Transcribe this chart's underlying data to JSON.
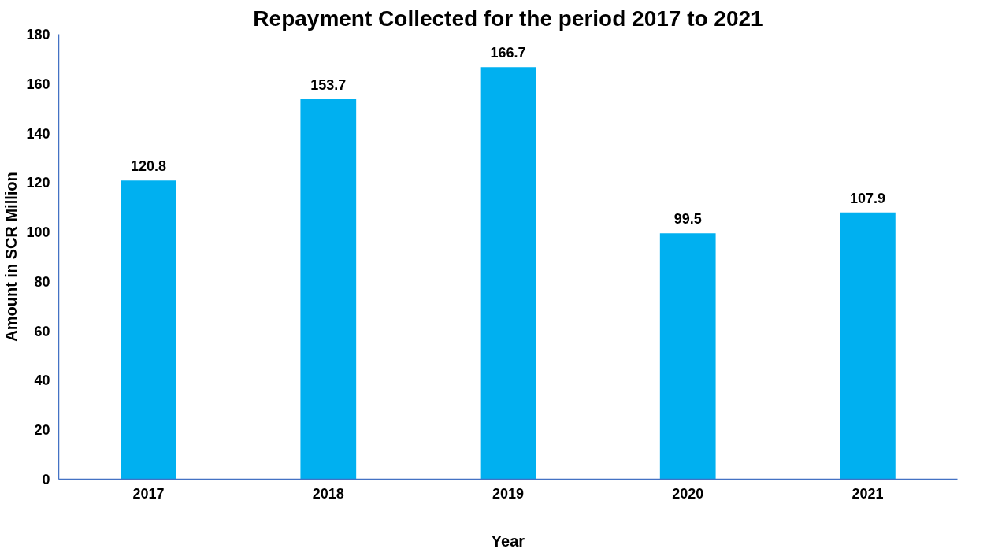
{
  "chart_data": {
    "type": "bar",
    "title": "Repayment Collected for the period 2017 to 2021",
    "xlabel": "Year",
    "ylabel": "Amount in SCR Million",
    "categories": [
      "2017",
      "2018",
      "2019",
      "2020",
      "2021"
    ],
    "values": [
      120.8,
      153.7,
      166.7,
      99.5,
      107.9
    ],
    "color": "#00b0f0",
    "ylim": [
      0,
      180
    ],
    "yticks": [
      0,
      20,
      40,
      60,
      80,
      100,
      120,
      140,
      160,
      180
    ],
    "data_labels": true,
    "grid": false
  }
}
